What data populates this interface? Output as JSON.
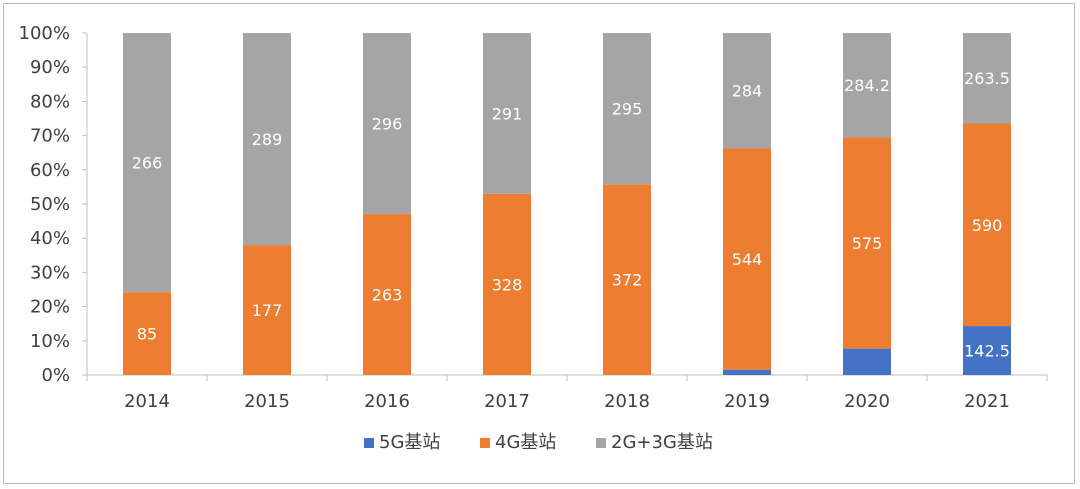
{
  "chart_data": {
    "type": "bar",
    "stacked": "percent",
    "categories": [
      "2014",
      "2015",
      "2016",
      "2017",
      "2018",
      "2019",
      "2020",
      "2021"
    ],
    "series": [
      {
        "name": "5G基站",
        "color": "#4472C4",
        "values": [
          0,
          0,
          0,
          0,
          0,
          13,
          71.8,
          142.5
        ],
        "labels": [
          "",
          "",
          "",
          "",
          "",
          "",
          "",
          "142.5"
        ]
      },
      {
        "name": "4G基站",
        "color": "#ED7D31",
        "values": [
          85,
          177,
          263,
          328,
          372,
          544,
          575,
          590
        ],
        "labels": [
          "85",
          "177",
          "263",
          "328",
          "372",
          "544",
          "575",
          "590"
        ]
      },
      {
        "name": "2G+3G基站",
        "color": "#A5A5A5",
        "values": [
          266,
          289,
          296,
          291,
          295,
          284,
          284.2,
          263.5
        ],
        "labels": [
          "266",
          "289",
          "296",
          "291",
          "295",
          "284",
          "284.2",
          "263.5"
        ]
      }
    ],
    "y_ticks": [
      "0%",
      "10%",
      "20%",
      "30%",
      "40%",
      "50%",
      "60%",
      "70%",
      "80%",
      "90%",
      "100%"
    ],
    "ylim": [
      0,
      100
    ],
    "grid": false,
    "legend": "bottom"
  }
}
